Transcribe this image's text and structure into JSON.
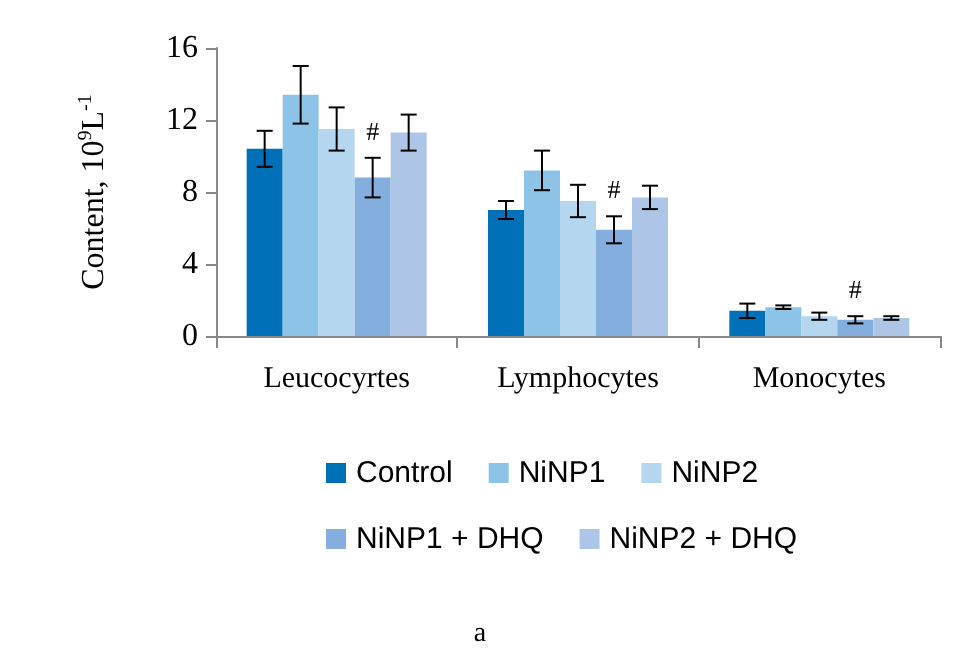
{
  "chart_data": {
    "type": "bar",
    "ylabel": "Content, 10$^{9}$L$^{-1}$",
    "categories": [
      "Leucocyrtes",
      "Lymphocytes",
      "Monocytes"
    ],
    "series": [
      {
        "name": "Control",
        "color": "#0070b8",
        "values": [
          10.4,
          7.0,
          1.4
        ],
        "errors": [
          1.0,
          0.5,
          0.4
        ]
      },
      {
        "name": "NiNP1",
        "color": "#8cc3e6",
        "values": [
          13.4,
          9.2,
          1.6
        ],
        "errors": [
          1.6,
          1.1,
          0.1
        ]
      },
      {
        "name": "NiNP2",
        "color": "#b4d7ef",
        "values": [
          11.5,
          7.5,
          1.1
        ],
        "errors": [
          1.2,
          0.9,
          0.2
        ]
      },
      {
        "name": "NiNP1 + DHQ",
        "color": "#84aedd",
        "values": [
          8.8,
          5.9,
          0.9
        ],
        "errors": [
          1.1,
          0.75,
          0.2
        ]
      },
      {
        "name": "NiNP2 + DHQ",
        "color": "#adc6e8",
        "values": [
          11.3,
          7.7,
          1.0
        ],
        "errors": [
          1.0,
          0.65,
          0.1
        ]
      }
    ],
    "ylim": [
      0,
      16
    ],
    "yticks": [
      0,
      4,
      8,
      12,
      16
    ],
    "grid": false,
    "legend": "bottom",
    "annotations": [
      {
        "text": "#",
        "x": "Leucocyrtes",
        "y": 9.9
      },
      {
        "text": "#",
        "x": "Lymphocytes",
        "y": 6.65
      },
      {
        "text": "#",
        "x": "Monocytes",
        "y": 1.1
      },
      "a"
    ]
  }
}
